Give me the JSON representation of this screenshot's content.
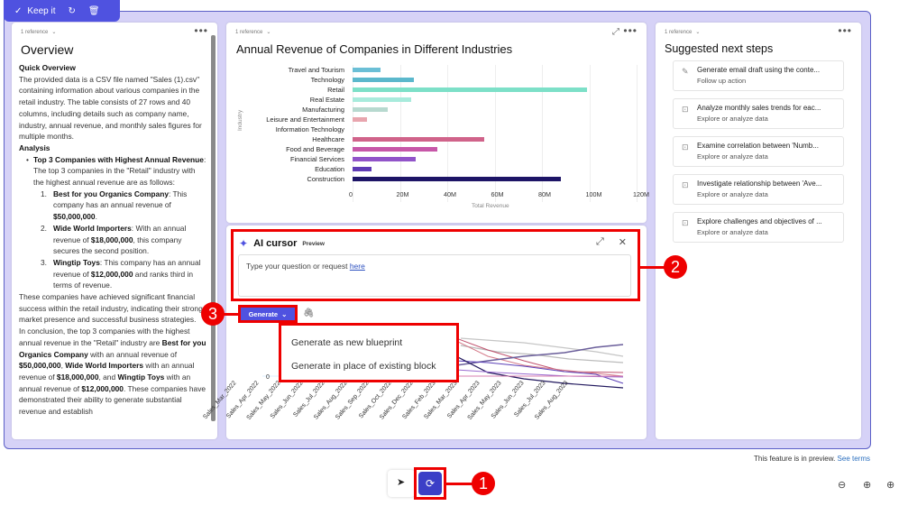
{
  "keepbar": {
    "keep_label": "Keep it",
    "icons": [
      "checkmark-icon",
      "refresh-icon",
      "trash-icon"
    ]
  },
  "overview": {
    "reference": "1 reference",
    "title": "Overview",
    "quick_heading": "Quick Overview",
    "quick_text": "The provided data is a CSV file named \"Sales (1).csv\" containing information about various companies in the retail industry. The table consists of 27 rows and 40 columns, including details such as company name, industry, annual revenue, and monthly sales figures for multiple months.",
    "analysis_heading": "Analysis",
    "bullet_bold": "Top 3 Companies with Highest Annual Revenue",
    "bullet_text": ": The top 3 companies in the \"Retail\" industry with the highest annual revenue are as follows:",
    "items": [
      {
        "num": "1.",
        "bold": "Best for you Organics Company",
        "text1": ": This company has an annual revenue of ",
        "value": "$50,000,000",
        "text2": "."
      },
      {
        "num": "2.",
        "bold": "Wide World Importers",
        "text1": ": With an annual revenue of ",
        "value": "$18,000,000",
        "text2": ", this company secures the second position."
      },
      {
        "num": "3.",
        "bold": "Wingtip Toys",
        "text1": ": This company has an annual revenue of ",
        "value": "$12,000,000",
        "text2": " and ranks third in terms of revenue."
      }
    ],
    "para1": "These companies have achieved significant financial success within the retail industry, indicating their strong market presence and successful business strategies.",
    "conc_a": "In conclusion, the top 3 companies with the highest annual revenue in the \"Retail\" industry are ",
    "conc_b1": "Best for you Organics Company",
    "conc_c": " with an annual revenue of ",
    "conc_v1": "$50,000,000",
    "conc_d": ", ",
    "conc_b2": "Wide World Importers",
    "conc_e": " with an annual revenue of ",
    "conc_v2": "$18,000,000",
    "conc_f": ", and ",
    "conc_b3": "Wingtip Toys",
    "conc_g": " with an annual revenue of ",
    "conc_v3": "$12,000,000",
    "conc_h": ". These companies have demonstrated their ability to generate substantial revenue and establish"
  },
  "bar_chart": {
    "reference": "1 reference",
    "title": "Annual Revenue of Companies in Different Industries",
    "xlabel": "Total Revenue",
    "ylabel": "Industry",
    "xticks": [
      "0",
      "20M",
      "40M",
      "60M",
      "80M",
      "100M",
      "120M"
    ],
    "rows": [
      {
        "label": "Travel and Tourism",
        "value": 12,
        "color": "#6bbfd6"
      },
      {
        "label": "Technology",
        "value": 26,
        "color": "#5bb8cc"
      },
      {
        "label": "Retail",
        "value": 100,
        "color": "#7de0c8"
      },
      {
        "label": "Real Estate",
        "value": 25,
        "color": "#a8ebdc"
      },
      {
        "label": "Manufacturing",
        "value": 15,
        "color": "#b7d9cf"
      },
      {
        "label": "Leisure and Entertainment",
        "value": 6,
        "color": "#e8a5ae"
      },
      {
        "label": "Information Technology",
        "value": 0,
        "color": "#cccccc"
      },
      {
        "label": "Healthcare",
        "value": 56,
        "color": "#d0638a"
      },
      {
        "label": "Food and Beverage",
        "value": 36,
        "color": "#c757a8"
      },
      {
        "label": "Financial Services",
        "value": 27,
        "color": "#9154c9"
      },
      {
        "label": "Education",
        "value": 8,
        "color": "#5f3bb5"
      },
      {
        "label": "Construction",
        "value": 89,
        "color": "#1d1466"
      }
    ]
  },
  "line_chart": {
    "y_zero": "0",
    "xticks": [
      "Sales_Mar_2022",
      "Sales_Apr_2022",
      "Sales_May_2022",
      "Sales_Jun_2022",
      "Sales_Jul_2022",
      "Sales_Aug_2022",
      "Sales_Sep_2022",
      "Sales_Oct_2022",
      "Sales_Dec_2022",
      "Sales_Feb_2023",
      "Sales_Mar_2023",
      "Sales_Apr_2023",
      "Sales_May_2023",
      "Sales_Jun_2023",
      "Sales_Jul_2023",
      "Sales_Aug_2023"
    ]
  },
  "ai_cursor": {
    "title": "AI cursor",
    "badge": "Preview",
    "input_text": "Type your question or request ",
    "input_link": "here",
    "generate_label": "Generate",
    "menu": [
      "Generate as new blueprint",
      "Generate in place of existing block"
    ]
  },
  "steps": {
    "reference": "1 reference",
    "title": "Suggested next steps",
    "items": [
      {
        "title": "Generate email draft using the conte...",
        "subtitle": "Follow up action",
        "icon": "pencil-icon"
      },
      {
        "title": "Analyze monthly sales trends for eac...",
        "subtitle": "Explore or analyze data",
        "icon": "chart-icon"
      },
      {
        "title": "Examine correlation between 'Numb...",
        "subtitle": "Explore or analyze data",
        "icon": "chart-icon"
      },
      {
        "title": "Investigate relationship between 'Ave...",
        "subtitle": "Explore or analyze data",
        "icon": "chart-icon"
      },
      {
        "title": "Explore challenges and objectives of ...",
        "subtitle": "Explore or analyze data",
        "icon": "chart-icon"
      }
    ]
  },
  "footer": {
    "preview_text": "This feature is in preview.",
    "terms_link": "See terms"
  },
  "callouts": [
    "1",
    "2",
    "3"
  ],
  "colors": {
    "accent": "#4f52e0",
    "callout": "#e00000",
    "canvas": "#d6d2f7"
  }
}
